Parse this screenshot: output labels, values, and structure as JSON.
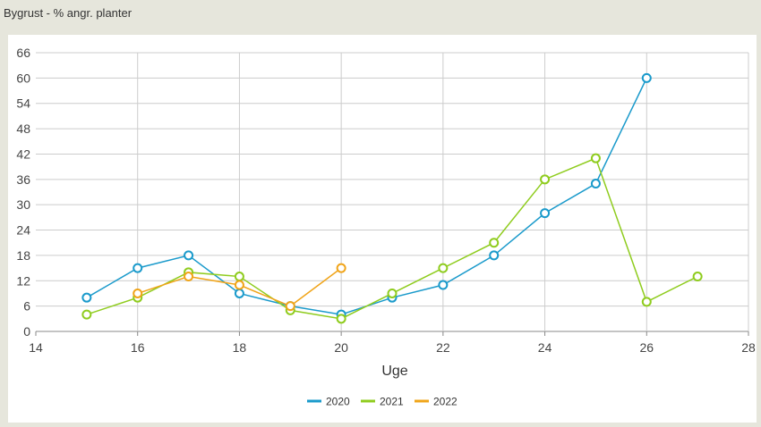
{
  "header": {
    "title": "Bygrust - % angr. planter"
  },
  "colors": {
    "background": "#e6e6dc",
    "panel": "#ffffff",
    "grid": "#cccccc"
  },
  "chart_data": {
    "type": "line",
    "title": "",
    "xlabel": "Uge",
    "ylabel": "",
    "xlim": [
      14,
      28
    ],
    "ylim": [
      0,
      66
    ],
    "x_ticks": [
      14,
      16,
      18,
      20,
      22,
      24,
      26,
      28
    ],
    "y_ticks": [
      0,
      6,
      12,
      18,
      24,
      30,
      36,
      42,
      48,
      54,
      60,
      66
    ],
    "grid": true,
    "legend_position": "bottom-center",
    "series": [
      {
        "name": "2020",
        "color": "#1a9acb",
        "x": [
          15,
          16,
          17,
          18,
          19,
          20,
          21,
          22,
          23,
          24,
          25,
          26
        ],
        "y": [
          8,
          15,
          18,
          9,
          6,
          4,
          8,
          11,
          18,
          28,
          35,
          60
        ]
      },
      {
        "name": "2021",
        "color": "#8fcc1e",
        "x": [
          15,
          16,
          17,
          18,
          19,
          20,
          21,
          22,
          23,
          24,
          25,
          26,
          27
        ],
        "y": [
          4,
          8,
          14,
          13,
          5,
          3,
          9,
          15,
          21,
          36,
          41,
          7,
          13
        ]
      },
      {
        "name": "2022",
        "color": "#f0a419",
        "x": [
          16,
          17,
          18,
          19,
          20
        ],
        "y": [
          9,
          13,
          11,
          6,
          15
        ]
      }
    ]
  }
}
